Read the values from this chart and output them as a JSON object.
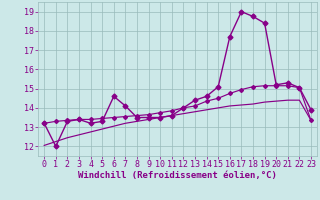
{
  "xlabel": "Windchill (Refroidissement éolien,°C)",
  "x": [
    0,
    1,
    2,
    3,
    4,
    5,
    6,
    7,
    8,
    9,
    10,
    11,
    12,
    13,
    14,
    15,
    16,
    17,
    18,
    19,
    20,
    21,
    22,
    23
  ],
  "y_main": [
    13.2,
    12.0,
    13.3,
    13.4,
    13.2,
    13.3,
    14.6,
    14.1,
    13.5,
    13.5,
    13.5,
    13.6,
    14.0,
    14.4,
    14.6,
    15.1,
    17.7,
    19.0,
    18.75,
    18.4,
    15.2,
    15.3,
    15.05,
    13.9
  ],
  "y_smooth": [
    13.2,
    13.3,
    13.35,
    13.4,
    13.4,
    13.45,
    13.5,
    13.55,
    13.6,
    13.65,
    13.75,
    13.85,
    14.0,
    14.1,
    14.35,
    14.5,
    14.75,
    14.95,
    15.1,
    15.15,
    15.15,
    15.15,
    15.05,
    13.35
  ],
  "y_linear": [
    12.05,
    12.25,
    12.45,
    12.6,
    12.75,
    12.9,
    13.05,
    13.2,
    13.3,
    13.4,
    13.5,
    13.6,
    13.7,
    13.8,
    13.9,
    14.0,
    14.1,
    14.15,
    14.2,
    14.3,
    14.35,
    14.4,
    14.4,
    13.35
  ],
  "bg_color": "#cce8e8",
  "grid_color": "#99bbbb",
  "line_color": "#880088",
  "marker": "D",
  "marker_size": 2.5,
  "ylim_min": 12,
  "ylim_max": 19,
  "yticks": [
    12,
    13,
    14,
    15,
    16,
    17,
    18,
    19
  ],
  "xticks": [
    0,
    1,
    2,
    3,
    4,
    5,
    6,
    7,
    8,
    9,
    10,
    11,
    12,
    13,
    14,
    15,
    16,
    17,
    18,
    19,
    20,
    21,
    22,
    23
  ],
  "xlabel_fontsize": 6.5,
  "tick_fontsize": 6,
  "line_width": 1.0
}
